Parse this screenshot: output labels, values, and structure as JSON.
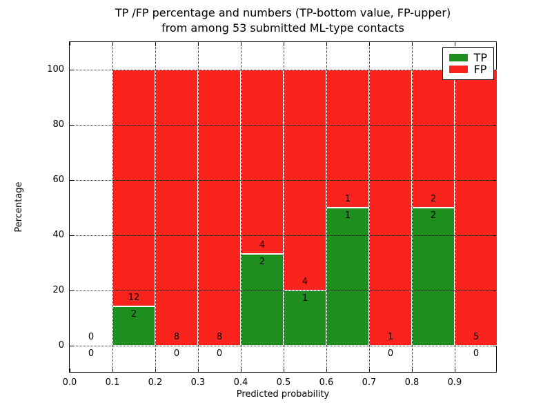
{
  "title": {
    "line1": "TP /FP percentage and numbers (TP-bottom value, FP-upper)",
    "line2": "from among 53 submitted ML-type contacts"
  },
  "axes": {
    "xlabel": "Predicted probability",
    "ylabel": "Percentage"
  },
  "legend": {
    "position": "upper right",
    "entries": [
      {
        "label": "TP",
        "color": "#1e8e1e"
      },
      {
        "label": "FP",
        "color": "#fa241c"
      }
    ]
  },
  "chart_data": {
    "type": "bar",
    "stacked": true,
    "title": "TP /FP percentage and numbers (TP-bottom value, FP-upper) from among 53 submitted ML-type contacts",
    "xlabel": "Predicted probability",
    "ylabel": "Percentage",
    "total_contacts": 53,
    "xlim": [
      0.0,
      1.0
    ],
    "ylim": [
      -10,
      110
    ],
    "grid": "dotted both axes, drawn over bars",
    "legend_position": "upper right",
    "x_ticks": [
      {
        "v": 0.0,
        "label": "0.0"
      },
      {
        "v": 0.1,
        "label": "0.1"
      },
      {
        "v": 0.2,
        "label": "0.2"
      },
      {
        "v": 0.3,
        "label": "0.3"
      },
      {
        "v": 0.4,
        "label": "0.4"
      },
      {
        "v": 0.5,
        "label": "0.5"
      },
      {
        "v": 0.6,
        "label": "0.6"
      },
      {
        "v": 0.7,
        "label": "0.7"
      },
      {
        "v": 0.8,
        "label": "0.8"
      },
      {
        "v": 0.9,
        "label": "0.9"
      }
    ],
    "y_ticks": [
      {
        "v": 0,
        "label": "0"
      },
      {
        "v": 20,
        "label": "20"
      },
      {
        "v": 40,
        "label": "40"
      },
      {
        "v": 60,
        "label": "60"
      },
      {
        "v": 80,
        "label": "80"
      },
      {
        "v": 100,
        "label": "100"
      }
    ],
    "series_note": "Each bin stacks TP (green, bottom) and FP (red, top) to 100%; labels show raw counts FP above boundary, TP below",
    "bins": [
      {
        "x0": 0.0,
        "x1": 0.1,
        "tp": 0,
        "fp": 0,
        "tp_pct": 0,
        "fp_pct": 0
      },
      {
        "x0": 0.1,
        "x1": 0.2,
        "tp": 2,
        "fp": 12,
        "tp_pct": 14.3,
        "fp_pct": 85.7
      },
      {
        "x0": 0.2,
        "x1": 0.3,
        "tp": 0,
        "fp": 8,
        "tp_pct": 0,
        "fp_pct": 100
      },
      {
        "x0": 0.3,
        "x1": 0.4,
        "tp": 0,
        "fp": 8,
        "tp_pct": 0,
        "fp_pct": 100
      },
      {
        "x0": 0.4,
        "x1": 0.5,
        "tp": 2,
        "fp": 4,
        "tp_pct": 33.3,
        "fp_pct": 66.7
      },
      {
        "x0": 0.5,
        "x1": 0.6,
        "tp": 1,
        "fp": 4,
        "tp_pct": 20,
        "fp_pct": 80
      },
      {
        "x0": 0.6,
        "x1": 0.7,
        "tp": 1,
        "fp": 1,
        "tp_pct": 50,
        "fp_pct": 50
      },
      {
        "x0": 0.7,
        "x1": 0.8,
        "tp": 0,
        "fp": 1,
        "tp_pct": 0,
        "fp_pct": 100
      },
      {
        "x0": 0.8,
        "x1": 0.9,
        "tp": 2,
        "fp": 2,
        "tp_pct": 50,
        "fp_pct": 50
      },
      {
        "x0": 0.9,
        "x1": 1.0,
        "tp": 0,
        "fp": 5,
        "tp_pct": 0,
        "fp_pct": 100
      }
    ],
    "colors": {
      "tp": "#1e8e1e",
      "fp": "#fa241c",
      "grid": "#000000",
      "frame": "#000000"
    }
  }
}
